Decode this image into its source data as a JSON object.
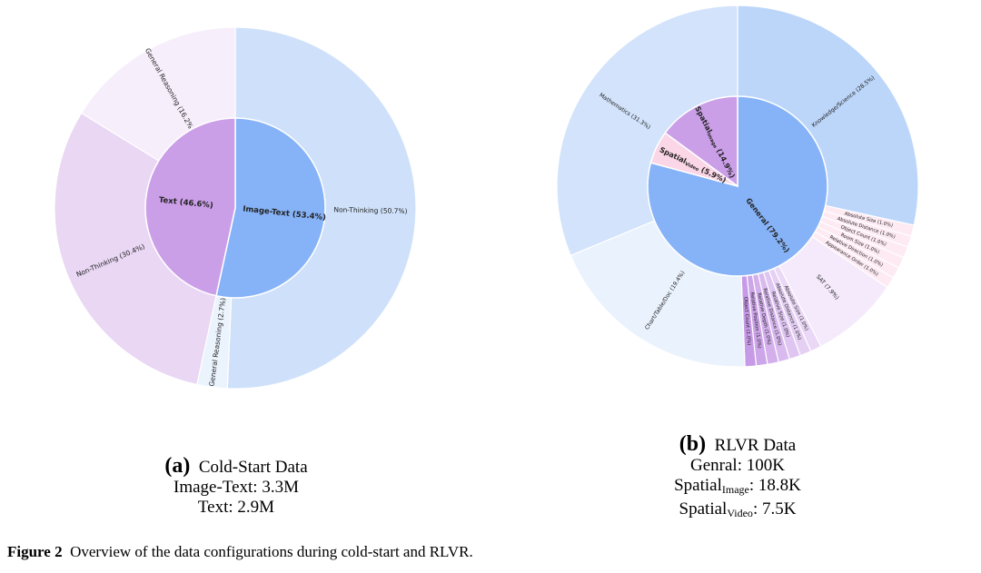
{
  "chart_data": [
    {
      "type": "sunburst",
      "panel": "(a)",
      "title": "Cold-Start Data",
      "inner": [
        {
          "label": "Image-Text (53.4%)",
          "value": 53.4,
          "color": "#86b3f7"
        },
        {
          "label": "Text (46.6%)",
          "value": 46.6,
          "color": "#cb9fe8"
        }
      ],
      "outer": [
        {
          "parent": 0,
          "label": "Non-Thinking (50.7%)",
          "value": 50.7,
          "color": "#cfe1fa"
        },
        {
          "parent": 0,
          "label": "General Reasoning (2.7%)",
          "value": 2.7,
          "color": "#ebf3fd"
        },
        {
          "parent": 1,
          "label": "Non-Thinking (30.4%)",
          "value": 30.4,
          "color": "#e9d7f4"
        },
        {
          "parent": 1,
          "label": "General Reasoning (16.2%)",
          "value": 16.2,
          "color": "#f6eefb"
        }
      ],
      "stats": [
        "Image-Text: 3.3M",
        "Text: 2.9M"
      ]
    },
    {
      "type": "sunburst",
      "panel": "(b)",
      "title": "RLVR Data",
      "inner": [
        {
          "label": "General (79.2%)",
          "value": 79.2,
          "color": "#86b3f7"
        },
        {
          "label": "Spatial",
          "sub": "Video",
          "suffix": " (5.9%)",
          "value": 5.9,
          "color": "#fbd6e6"
        },
        {
          "label": "Spatial",
          "sub": "Image",
          "suffix": " (14.9%)",
          "value": 14.9,
          "color": "#cb9fe8"
        }
      ],
      "outer": [
        {
          "parent": 0,
          "label": "Knowledge/Science (28.5%)",
          "value": 28.5,
          "color": "#bcd6fa"
        },
        {
          "parent": 1,
          "label": "Absolute Size (1.0%)",
          "value": 1.0,
          "color": "#fdeaf2"
        },
        {
          "parent": 1,
          "label": "Absolute Distance (1.0%)",
          "value": 1.0,
          "color": "#fdeaf2"
        },
        {
          "parent": 1,
          "label": "Object Count (1.0%)",
          "value": 1.0,
          "color": "#fdeaf2"
        },
        {
          "parent": 1,
          "label": "Room Size (1.0%)",
          "value": 1.0,
          "color": "#fdeaf2"
        },
        {
          "parent": 1,
          "label": "Relative Direction (1.0%)",
          "value": 1.0,
          "color": "#fdeaf2"
        },
        {
          "parent": 1,
          "label": "Appearance Order (1.0%)",
          "value": 1.0,
          "color": "#fdeaf2"
        },
        {
          "parent": 2,
          "label": "SAT (7.9%)",
          "value": 7.9,
          "color": "#f4eafb"
        },
        {
          "parent": 2,
          "label": "Absolute Size (1.0%)",
          "value": 1.0,
          "color": "#ead8f6"
        },
        {
          "parent": 2,
          "label": "Absolute Distance (1.0%)",
          "value": 1.0,
          "color": "#e5d0f4"
        },
        {
          "parent": 2,
          "label": "Relative Size (1.0%)",
          "value": 1.0,
          "color": "#dfc5f1"
        },
        {
          "parent": 2,
          "label": "Relative Distance (1.0%)",
          "value": 1.0,
          "color": "#d9baef"
        },
        {
          "parent": 2,
          "label": "Relative Depth (1.0%)",
          "value": 1.0,
          "color": "#d3afec"
        },
        {
          "parent": 2,
          "label": "Relative Position (1.0%)",
          "value": 1.0,
          "color": "#cda5e9"
        },
        {
          "parent": 2,
          "label": "Object Count (1.0%)",
          "value": 1.0,
          "color": "#c79ae7"
        },
        {
          "parent": 0,
          "label": "Chart/Table/Doc (19.4%)",
          "value": 19.4,
          "color": "#eaf2fd"
        },
        {
          "parent": 0,
          "label": "Mathematics (31.3%)",
          "value": 31.3,
          "color": "#d2e3fb"
        }
      ],
      "stats_html": [
        "Genral: 100K",
        "Spatial|Image|: 18.8K",
        "Spatial|Video|: 7.5K"
      ]
    }
  ],
  "captions": {
    "a_letter": "(a)",
    "a_title": "Cold-Start Data",
    "a_line1": "Image-Text: 3.3M",
    "a_line2": "Text: 2.9M",
    "b_letter": "(b)",
    "b_title": "RLVR Data",
    "b_line1": "Genral: 100K",
    "b_line2_main": "Spatial",
    "b_line2_sub": "Image",
    "b_line2_val": ": 18.8K",
    "b_line3_main": "Spatial",
    "b_line3_sub": "Video",
    "b_line3_val": ": 7.5K"
  },
  "figure_caption": {
    "label": "Figure 2",
    "text": "Overview of the data configurations during cold-start and RLVR."
  }
}
